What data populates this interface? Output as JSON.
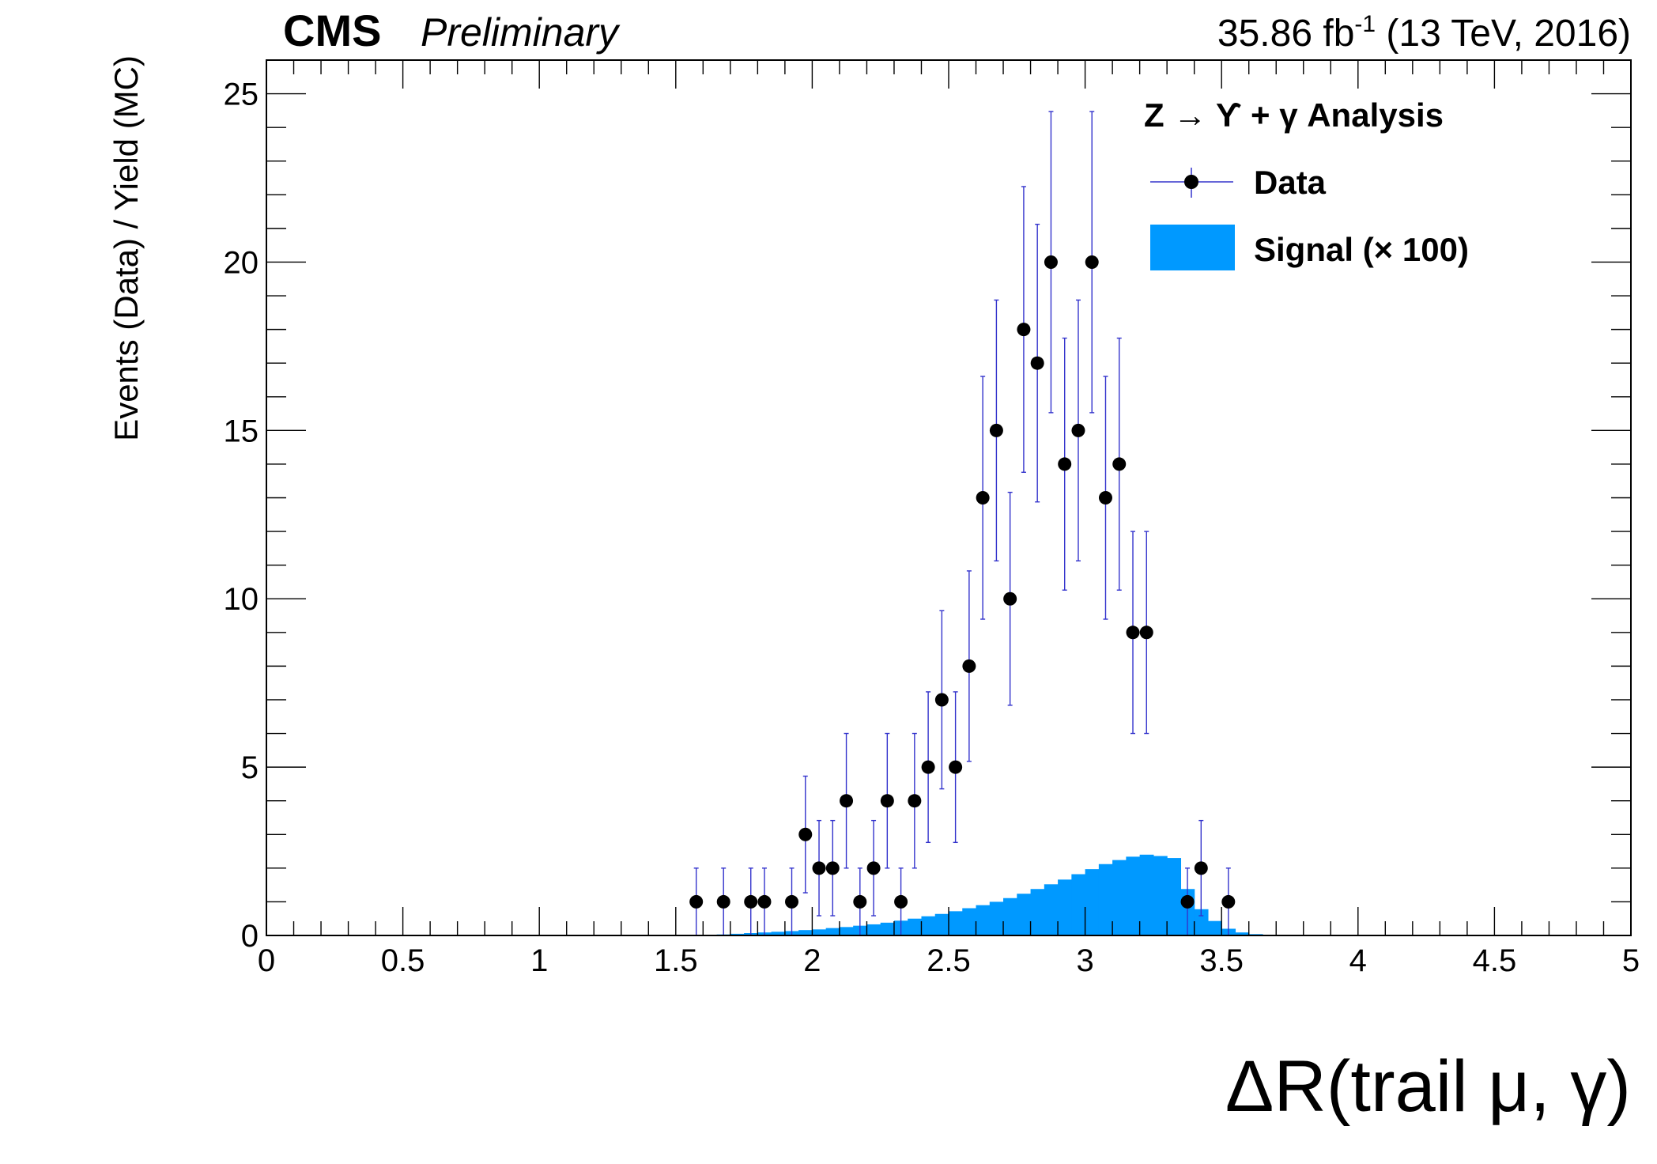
{
  "header": {
    "cms_label": "CMS",
    "prelim_label": "Preliminary",
    "lumi_prefix": "35.86 fb",
    "lumi_sup": "-1",
    "lumi_suffix": " (13 TeV, 2016)"
  },
  "chart_data": {
    "type": "histogram with data points",
    "xlabel": "ΔR(trail μ, γ)",
    "ylabel": "Events (Data) / Yield (MC)",
    "xlim": [
      0,
      5
    ],
    "ylim": [
      0,
      26
    ],
    "x_ticks": [
      "0",
      "0.5",
      "1",
      "1.5",
      "2",
      "2.5",
      "3",
      "3.5",
      "4",
      "4.5",
      "5"
    ],
    "y_ticks": [
      "0",
      "5",
      "10",
      "15",
      "20",
      "25"
    ],
    "bin_width": 0.05,
    "legend": {
      "title": "Z → ϒ + γ Analysis",
      "position": "top-right",
      "entries": [
        "Data",
        "Signal (× 100)"
      ]
    },
    "colors": {
      "signal": "#0099ff",
      "data_marker": "#000000",
      "error_bar": "#3333cc"
    },
    "series": [
      {
        "name": "Data",
        "type": "points",
        "x": [
          1.575,
          1.675,
          1.775,
          1.825,
          1.925,
          1.975,
          2.025,
          2.075,
          2.125,
          2.175,
          2.225,
          2.275,
          2.325,
          2.375,
          2.425,
          2.475,
          2.525,
          2.575,
          2.625,
          2.675,
          2.725,
          2.775,
          2.825,
          2.875,
          2.925,
          2.975,
          3.025,
          3.075,
          3.125,
          3.175,
          3.225,
          3.375,
          3.425,
          3.525
        ],
        "y": [
          1,
          1,
          1,
          1,
          1,
          3,
          2,
          2,
          4,
          1,
          2,
          4,
          1,
          4,
          5,
          7,
          5,
          8,
          13,
          15,
          10,
          18,
          17,
          20,
          14,
          15,
          20,
          13,
          14,
          9,
          9,
          1,
          2,
          1
        ]
      },
      {
        "name": "Signal (× 100)",
        "type": "histogram",
        "bin_edges_start": 1.55,
        "values": [
          0.0,
          0.02,
          0.03,
          0.05,
          0.07,
          0.09,
          0.11,
          0.13,
          0.16,
          0.18,
          0.22,
          0.25,
          0.29,
          0.33,
          0.38,
          0.44,
          0.5,
          0.57,
          0.64,
          0.72,
          0.81,
          0.9,
          1.0,
          1.11,
          1.24,
          1.38,
          1.52,
          1.66,
          1.82,
          1.97,
          2.12,
          2.24,
          2.34,
          2.4,
          2.36,
          2.3,
          1.38,
          0.78,
          0.43,
          0.2,
          0.09,
          0.04,
          0.01
        ]
      }
    ]
  }
}
